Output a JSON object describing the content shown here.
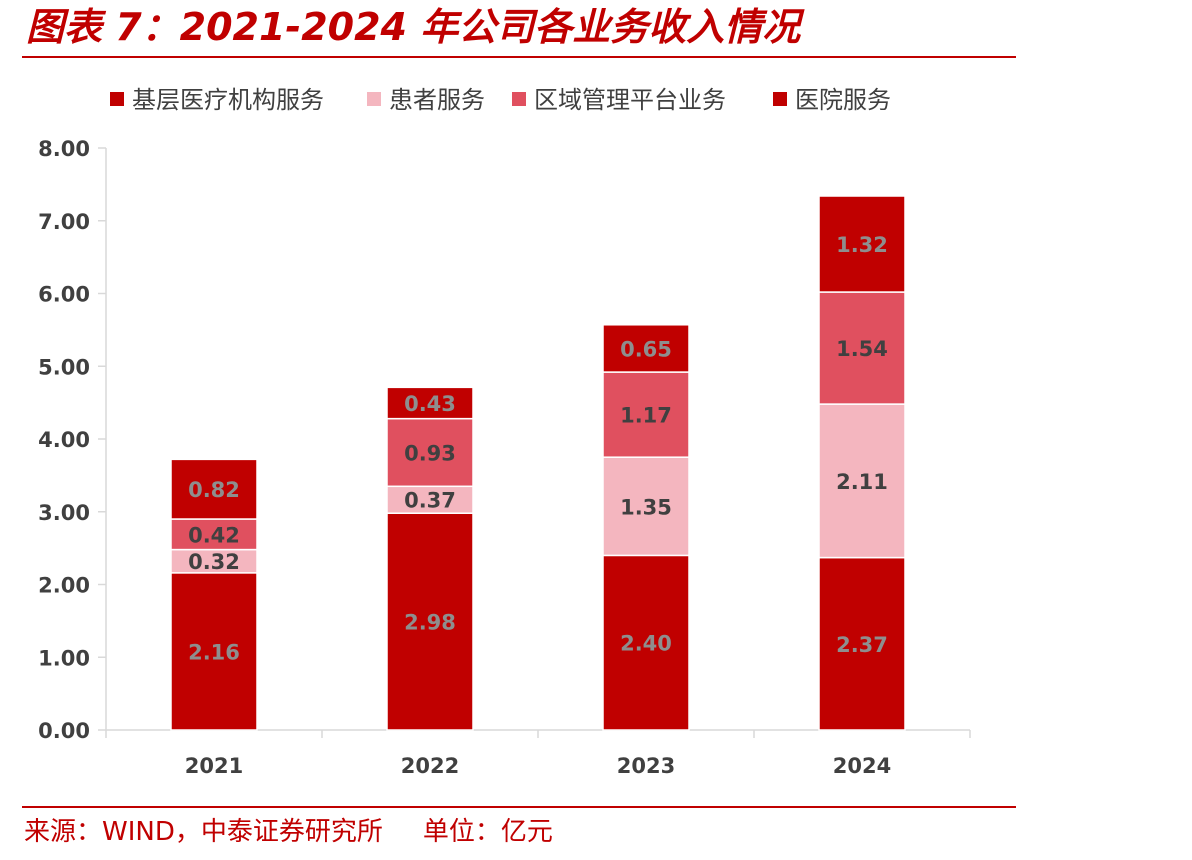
{
  "figure": {
    "title": "图表 7：2021-2024 年公司各业务收入情况",
    "source": "来源：WIND，中泰证券研究所",
    "unit": "单位：亿元"
  },
  "colors": {
    "accent": "#C00000",
    "series": [
      "#C00000",
      "#F4B6BF",
      "#E0505F",
      "#C00000"
    ],
    "label_dark": "#404040",
    "label_light": "#8E8E8E"
  },
  "chart_data": {
    "type": "bar",
    "stacked": true,
    "categories": [
      "2021",
      "2022",
      "2023",
      "2024"
    ],
    "series": [
      {
        "name": "基层医疗机构服务",
        "values": [
          2.16,
          2.98,
          2.4,
          2.37
        ]
      },
      {
        "name": "患者服务",
        "values": [
          0.32,
          0.37,
          1.35,
          2.11
        ]
      },
      {
        "name": "区域管理平台业务",
        "values": [
          0.42,
          0.93,
          1.17,
          1.54
        ]
      },
      {
        "name": "医院服务",
        "values": [
          0.82,
          0.43,
          0.65,
          1.32
        ]
      }
    ],
    "data_labels": [
      [
        "2.16",
        "2.98",
        "2.40",
        "2.37"
      ],
      [
        "0.32",
        "0.37",
        "1.35",
        "2.11"
      ],
      [
        "0.42",
        "0.93",
        "1.17",
        "1.54"
      ],
      [
        "0.82",
        "0.43",
        "0.65",
        "1.32"
      ]
    ],
    "y_ticks": [
      "0.00",
      "1.00",
      "2.00",
      "3.00",
      "4.00",
      "5.00",
      "6.00",
      "7.00",
      "8.00"
    ],
    "ylim": [
      0,
      8
    ],
    "legend_position": "top",
    "grid": false
  }
}
